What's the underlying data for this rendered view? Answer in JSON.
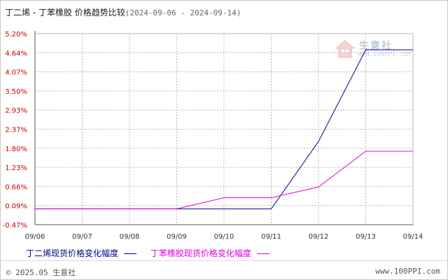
{
  "header": {
    "title": "丁二烯 - 丁苯橡胶 价格趋势比较",
    "date_range": "(2024-09-06 - 2024-09-14)"
  },
  "watermark": {
    "brand": "生意社",
    "url": "WWW.100PPI.COM"
  },
  "footer": {
    "copyright": "© 2025.05 生意社",
    "site": "www.100PPI.com"
  },
  "colors": {
    "series1": "#00008b",
    "series2": "#e000e0",
    "ytick_text": "#cc0000",
    "xtick_text": "#333333",
    "grid": "#b8b8b8"
  },
  "chart_data": {
    "type": "line",
    "title": "丁二烯 - 丁苯橡胶 价格趋势比较",
    "xlabel": "",
    "ylabel": "",
    "categories": [
      "09/06",
      "09/07",
      "09/08",
      "09/09",
      "09/10",
      "09/11",
      "09/12",
      "09/13",
      "09/14"
    ],
    "y_ticks": [
      "5.20%",
      "4.64%",
      "4.07%",
      "3.50%",
      "2.93%",
      "2.37%",
      "1.80%",
      "1.23%",
      "0.66%",
      "0.09%",
      "-0.47%"
    ],
    "ylim": [
      -0.47,
      5.2
    ],
    "grid": true,
    "legend_position": "bottom",
    "series": [
      {
        "name": "丁二烯现货价格变化幅度",
        "color": "#00008b",
        "values": [
          0.0,
          0.0,
          0.0,
          0.0,
          0.0,
          0.0,
          2.0,
          4.72,
          4.72
        ]
      },
      {
        "name": "丁苯橡胶现货价格变化幅度",
        "color": "#e000e0",
        "values": [
          0.0,
          0.0,
          0.0,
          0.0,
          0.33,
          0.33,
          0.65,
          1.71,
          1.71
        ]
      }
    ]
  }
}
